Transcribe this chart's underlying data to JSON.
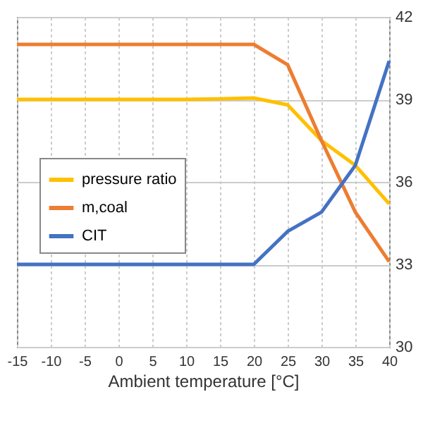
{
  "chart_data": {
    "type": "line",
    "xlabel": "Ambient temperature [°C]",
    "x": [
      -15,
      -10,
      -5,
      0,
      5,
      10,
      15,
      20,
      25,
      30,
      35,
      40
    ],
    "series": [
      {
        "name": "pressure ratio",
        "color": "#ffc000",
        "values": [
          39,
          39,
          39,
          39,
          39,
          39,
          39.02,
          39.05,
          38.8,
          37.5,
          36.6,
          35.2
        ]
      },
      {
        "name": "m,coal",
        "color": "#ed7d31",
        "values": [
          41,
          41,
          41,
          41,
          41,
          41,
          41,
          41,
          40.26,
          37.5,
          34.9,
          33.1
        ]
      },
      {
        "name": "CIT",
        "color": "#4472c4",
        "values": [
          33,
          33,
          33,
          33,
          33,
          33,
          33,
          33,
          34.2,
          34.9,
          36.6,
          40.4
        ]
      }
    ],
    "xlim": [
      -15,
      40
    ],
    "xticks": [
      -15,
      -10,
      -5,
      0,
      5,
      10,
      15,
      20,
      25,
      30,
      35,
      40
    ],
    "ylim": [
      30,
      42
    ],
    "yticks": [
      30,
      33,
      36,
      39,
      42
    ],
    "grid": true,
    "legend": "left",
    "marker": "none",
    "line_style": "solid"
  }
}
